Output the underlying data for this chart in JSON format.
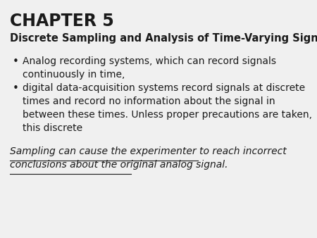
{
  "background_color": "#f0f0f0",
  "title": "CHAPTER 5",
  "subtitle": "Discrete Sampling and Analysis of Time-Varying Signals",
  "bullet1_line1": "Analog recording systems, which can record signals",
  "bullet1_line2": "continuously in time,",
  "bullet2_line1": "digital data-acquisition systems record signals at discrete",
  "bullet2_line2": "times and record no information about the signal in",
  "bullet2_line3": "between these times. Unless proper precautions are taken,",
  "bullet2_line4": "this discrete",
  "underline_line1": "Sampling can cause the experimenter to reach incorrect",
  "underline_line2": "conclusions about the original analog signal.",
  "text_color": "#1a1a1a",
  "title_fontsize": 17,
  "subtitle_fontsize": 10.5,
  "body_fontsize": 10,
  "underline_fontsize": 10
}
